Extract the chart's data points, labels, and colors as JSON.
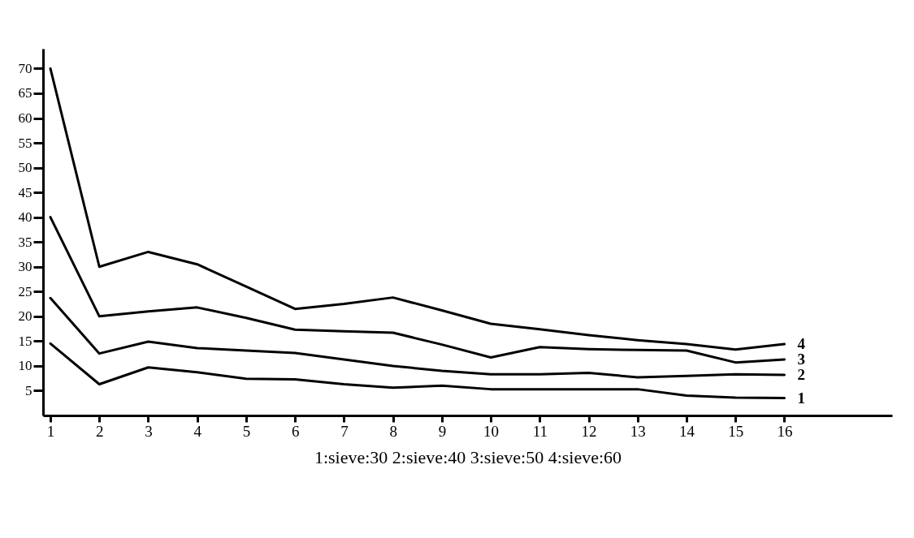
{
  "chart_data": {
    "type": "line",
    "xlabel": "1:sieve:30  2:sieve:40  3:sieve:50  4:sieve:60",
    "x": [
      1,
      2,
      3,
      4,
      5,
      6,
      7,
      8,
      9,
      10,
      11,
      12,
      13,
      14,
      15,
      16
    ],
    "series": [
      {
        "name": "4",
        "color": "#000000",
        "values": [
          70,
          30,
          33,
          30.5,
          26,
          21.5,
          22.5,
          23.8,
          21.2,
          18.5,
          17.4,
          16.2,
          15.2,
          14.4,
          13.3,
          14.4
        ]
      },
      {
        "name": "3",
        "color": "#000000",
        "values": [
          40,
          20,
          21,
          21.8,
          19.7,
          17.3,
          17,
          16.7,
          14.3,
          11.7,
          13.8,
          13.4,
          13.2,
          13.1,
          10.7,
          11.3
        ]
      },
      {
        "name": "2",
        "color": "#000000",
        "values": [
          23.7,
          12.5,
          14.9,
          13.6,
          13.1,
          12.6,
          11.3,
          10,
          9,
          8.3,
          8.3,
          8.6,
          7.7,
          8,
          8.3,
          8.2
        ]
      },
      {
        "name": "1",
        "color": "#000000",
        "values": [
          14.5,
          6.3,
          9.7,
          8.7,
          7.4,
          7.3,
          6.3,
          5.6,
          6,
          5.3,
          5.3,
          5.3,
          5.3,
          4,
          3.6,
          3.5
        ]
      }
    ],
    "xlim": [
      0.85,
      18.2
    ],
    "ylim": [
      0,
      74
    ],
    "xticks": [
      1,
      2,
      3,
      4,
      5,
      6,
      7,
      8,
      9,
      10,
      11,
      12,
      13,
      14,
      15,
      16
    ],
    "yticks": [
      5,
      10,
      15,
      20,
      25,
      30,
      35,
      40,
      45,
      50,
      55,
      60,
      65,
      70
    ],
    "grid": false,
    "legend": false,
    "marker": "none",
    "line_style": "solid"
  }
}
